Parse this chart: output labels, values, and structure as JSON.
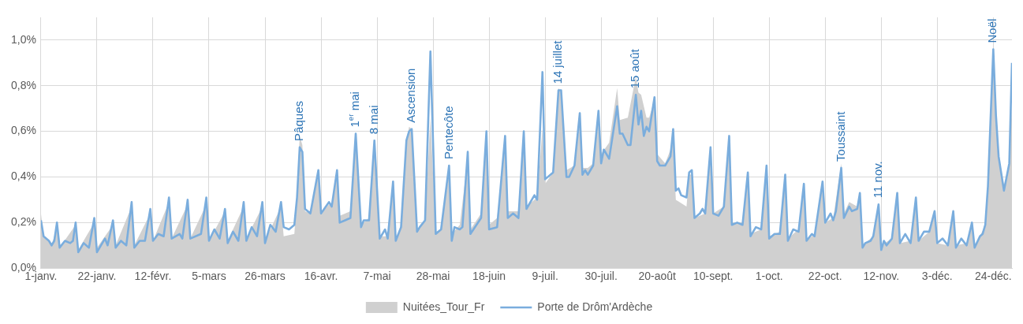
{
  "chart_data": {
    "type": "line",
    "xlim": [
      "--01-01",
      "--12-31"
    ],
    "xticks": [
      {
        "value": "--01-01",
        "label": "1-janv."
      },
      {
        "value": "--01-22",
        "label": "22-janv."
      },
      {
        "value": "--02-12",
        "label": "12-févr."
      },
      {
        "value": "--03-05",
        "label": "5-mars"
      },
      {
        "value": "--03-26",
        "label": "26-mars"
      },
      {
        "value": "--04-16",
        "label": "16-avr."
      },
      {
        "value": "--05-07",
        "label": "7-mai"
      },
      {
        "value": "--05-28",
        "label": "28-mai"
      },
      {
        "value": "--06-18",
        "label": "18-juin"
      },
      {
        "value": "--07-09",
        "label": "9-juil."
      },
      {
        "value": "--07-30",
        "label": "30-juil."
      },
      {
        "value": "--08-20",
        "label": "20-août"
      },
      {
        "value": "--09-10",
        "label": "10-sept."
      },
      {
        "value": "--10-01",
        "label": "1-oct."
      },
      {
        "value": "--10-22",
        "label": "22-oct."
      },
      {
        "value": "--11-12",
        "label": "12-nov."
      },
      {
        "value": "--12-03",
        "label": "3-déc."
      },
      {
        "value": "--12-24",
        "label": "24-déc."
      }
    ],
    "ylim": [
      0,
      1.1
    ],
    "yticks": [
      {
        "value": 0,
        "label": "0,0%"
      },
      {
        "value": 0.2,
        "label": "0,2%"
      },
      {
        "value": 0.4,
        "label": "0,4%"
      },
      {
        "value": 0.6,
        "label": "0,6%"
      },
      {
        "value": 0.8,
        "label": "0,8%"
      },
      {
        "value": 1.0,
        "label": "1,0%"
      }
    ],
    "grid": true,
    "legend": "bottom",
    "annotations": [
      {
        "text": "Pâques",
        "x": "--04-08",
        "y": 0.53
      },
      {
        "text": "1$^{er}$ mai",
        "x": "--04-29",
        "y": 0.59
      },
      {
        "text": "8 mai",
        "x": "--05-06",
        "y": 0.56
      },
      {
        "text": "Ascension",
        "x": "--05-20",
        "y": 0.61
      },
      {
        "text": "Pentecôte",
        "x": "--06-03",
        "y": 0.45
      },
      {
        "text": "14 juillet",
        "x": "--07-14",
        "y": 0.78
      },
      {
        "text": "15 août",
        "x": "--08-12",
        "y": 0.76
      },
      {
        "text": "Toussaint",
        "x": "--10-28",
        "y": 0.44
      },
      {
        "text": "11 nov.",
        "x": "--11-11",
        "y": 0.28
      },
      {
        "text": "Noël",
        "x": "--12-24",
        "y": 0.96
      }
    ],
    "series": [
      {
        "name": "Nuitées_Tour_Fr",
        "type": "area",
        "color": "#d0d0d0",
        "x": [
          "--01-01",
          "--01-02",
          "--01-04",
          "--01-05",
          "--01-07",
          "--01-08",
          "--01-14",
          "--01-15",
          "--01-21",
          "--01-22",
          "--01-28",
          "--01-29",
          "--02-04",
          "--02-05",
          "--02-11",
          "--02-12",
          "--02-18",
          "--02-19",
          "--02-25",
          "--02-26",
          "--03-04",
          "--03-05",
          "--03-11",
          "--03-12",
          "--03-18",
          "--03-19",
          "--03-25",
          "--03-26",
          "--04-01",
          "--04-02",
          "--04-06",
          "--04-07",
          "--04-08",
          "--04-09",
          "--04-10",
          "--04-12",
          "--04-15",
          "--04-16",
          "--04-19",
          "--04-20",
          "--04-22",
          "--04-23",
          "--04-27",
          "--04-29",
          "--05-01",
          "--05-04",
          "--05-06",
          "--05-08",
          "--05-11",
          "--05-13",
          "--05-14",
          "--05-16",
          "--05-18",
          "--05-19",
          "--05-20",
          "--05-22",
          "--05-25",
          "--05-27",
          "--05-29",
          "--05-31",
          "--06-03",
          "--06-04",
          "--06-07",
          "--06-10",
          "--06-11",
          "--06-15",
          "--06-17",
          "--06-18",
          "--06-21",
          "--06-24",
          "--06-25",
          "--06-29",
          "--07-01",
          "--07-02",
          "--07-06",
          "--07-08",
          "--07-09",
          "--07-12",
          "--07-14",
          "--07-15",
          "--07-17",
          "--07-20",
          "--07-22",
          "--07-23",
          "--07-25",
          "--07-27",
          "--07-29",
          "--07-30",
          "--08-02",
          "--08-05",
          "--08-06",
          "--08-09",
          "--08-12",
          "--08-13",
          "--08-14",
          "--08-16",
          "--08-17",
          "--08-19",
          "--08-20",
          "--08-23",
          "--08-26",
          "--08-27",
          "--08-31",
          "--09-01",
          "--09-02",
          "--09-03",
          "--09-07",
          "--09-09",
          "--09-10",
          "--09-14",
          "--09-16",
          "--09-17",
          "--09-21",
          "--09-23",
          "--09-24",
          "--09-28",
          "--09-30",
          "--10-01",
          "--10-05",
          "--10-07",
          "--10-08",
          "--10-12",
          "--10-14",
          "--10-15",
          "--10-18",
          "--10-21",
          "--10-22",
          "--10-25",
          "--10-28",
          "--10-29",
          "--10-31",
          "--11-03",
          "--11-04",
          "--11-05",
          "--11-09",
          "--11-11",
          "--11-12",
          "--11-16",
          "--11-18",
          "--11-19",
          "--11-23",
          "--11-25",
          "--11-26",
          "--11-30",
          "--12-02",
          "--12-03",
          "--12-07",
          "--12-09",
          "--12-10",
          "--12-14",
          "--12-16",
          "--12-17",
          "--12-21",
          "--12-22",
          "--12-24",
          "--12-25",
          "--12-26",
          "--12-28",
          "--12-30",
          "--12-31"
        ],
        "values": [
          0.24,
          0.14,
          0.12,
          0.1,
          0.18,
          0.09,
          0.19,
          0.08,
          0.2,
          0.09,
          0.19,
          0.1,
          0.27,
          0.1,
          0.24,
          0.12,
          0.29,
          0.13,
          0.28,
          0.13,
          0.28,
          0.12,
          0.25,
          0.12,
          0.27,
          0.13,
          0.27,
          0.12,
          0.27,
          0.14,
          0.15,
          0.33,
          0.58,
          0.54,
          0.25,
          0.24,
          0.41,
          0.24,
          0.28,
          0.27,
          0.41,
          0.23,
          0.25,
          0.56,
          0.19,
          0.22,
          0.53,
          0.14,
          0.14,
          0.36,
          0.13,
          0.19,
          0.55,
          0.62,
          0.61,
          0.17,
          0.21,
          0.66,
          0.16,
          0.17,
          0.42,
          0.15,
          0.19,
          0.48,
          0.17,
          0.24,
          0.57,
          0.19,
          0.22,
          0.55,
          0.25,
          0.25,
          0.56,
          0.27,
          0.31,
          0.61,
          0.37,
          0.42,
          0.79,
          0.77,
          0.43,
          0.45,
          0.64,
          0.44,
          0.44,
          0.46,
          0.66,
          0.5,
          0.55,
          0.79,
          0.65,
          0.66,
          0.84,
          0.77,
          0.76,
          0.66,
          0.66,
          0.74,
          0.5,
          0.46,
          0.55,
          0.3,
          0.27,
          0.41,
          0.41,
          0.22,
          0.24,
          0.5,
          0.24,
          0.27,
          0.55,
          0.2,
          0.2,
          0.4,
          0.15,
          0.17,
          0.43,
          0.14,
          0.16,
          0.39,
          0.13,
          0.17,
          0.35,
          0.12,
          0.15,
          0.36,
          0.2,
          0.22,
          0.46,
          0.24,
          0.29,
          0.27,
          0.32,
          0.1,
          0.14,
          0.27,
          0.1,
          0.13,
          0.31,
          0.11,
          0.12,
          0.29,
          0.12,
          0.16,
          0.24,
          0.11,
          0.1,
          0.24,
          0.1,
          0.11,
          0.19,
          0.09,
          0.19,
          0.36,
          0.92,
          0.68,
          0.5,
          0.36,
          0.45,
          0.73
        ]
      },
      {
        "name": "Porte de Drôm'Ardèche",
        "type": "line",
        "color": "#7aaddd",
        "x": [
          "--01-01",
          "--01-02",
          "--01-04",
          "--01-05",
          "--01-06",
          "--01-07",
          "--01-08",
          "--01-10",
          "--01-12",
          "--01-13",
          "--01-14",
          "--01-15",
          "--01-17",
          "--01-19",
          "--01-21",
          "--01-22",
          "--01-25",
          "--01-26",
          "--01-28",
          "--01-29",
          "--01-31",
          "--02-02",
          "--02-04",
          "--02-05",
          "--02-07",
          "--02-09",
          "--02-11",
          "--02-12",
          "--02-14",
          "--02-16",
          "--02-18",
          "--02-19",
          "--02-22",
          "--02-23",
          "--02-25",
          "--02-26",
          "--03-02",
          "--03-04",
          "--03-05",
          "--03-07",
          "--03-09",
          "--03-11",
          "--03-12",
          "--03-14",
          "--03-16",
          "--03-18",
          "--03-19",
          "--03-21",
          "--03-23",
          "--03-25",
          "--03-26",
          "--03-28",
          "--03-30",
          "--04-01",
          "--04-02",
          "--04-04",
          "--04-06",
          "--04-07",
          "--04-08",
          "--04-09",
          "--04-10",
          "--04-12",
          "--04-15",
          "--04-16",
          "--04-19",
          "--04-20",
          "--04-22",
          "--04-23",
          "--04-25",
          "--04-27",
          "--04-29",
          "--05-01",
          "--05-02",
          "--05-04",
          "--05-06",
          "--05-08",
          "--05-10",
          "--05-11",
          "--05-13",
          "--05-14",
          "--05-16",
          "--05-18",
          "--05-19",
          "--05-20",
          "--05-22",
          "--05-23",
          "--05-25",
          "--05-27",
          "--05-29",
          "--05-31",
          "--06-03",
          "--06-04",
          "--06-05",
          "--06-07",
          "--06-08",
          "--06-10",
          "--06-11",
          "--06-15",
          "--06-17",
          "--06-18",
          "--06-21",
          "--06-24",
          "--06-25",
          "--06-27",
          "--06-29",
          "--07-01",
          "--07-02",
          "--07-05",
          "--07-06",
          "--07-08",
          "--07-09",
          "--07-12",
          "--07-14",
          "--07-15",
          "--07-17",
          "--07-18",
          "--07-20",
          "--07-22",
          "--07-23",
          "--07-24",
          "--07-25",
          "--07-27",
          "--07-29",
          "--07-30",
          "--07-31",
          "--08-02",
          "--08-05",
          "--08-06",
          "--08-07",
          "--08-09",
          "--08-10",
          "--08-12",
          "--08-13",
          "--08-14",
          "--08-15",
          "--08-16",
          "--08-17",
          "--08-19",
          "--08-20",
          "--08-21",
          "--08-23",
          "--08-25",
          "--08-26",
          "--08-27",
          "--08-28",
          "--08-29",
          "--08-31",
          "--09-01",
          "--09-02",
          "--09-03",
          "--09-05",
          "--09-06",
          "--09-07",
          "--09-09",
          "--09-10",
          "--09-12",
          "--09-14",
          "--09-16",
          "--09-17",
          "--09-19",
          "--09-21",
          "--09-23",
          "--09-24",
          "--09-26",
          "--09-28",
          "--09-30",
          "--10-01",
          "--10-03",
          "--10-05",
          "--10-07",
          "--10-08",
          "--10-10",
          "--10-12",
          "--10-14",
          "--10-15",
          "--10-17",
          "--10-18",
          "--10-21",
          "--10-22",
          "--10-24",
          "--10-25",
          "--10-26",
          "--10-28",
          "--10-29",
          "--10-31",
          "--11-01",
          "--11-03",
          "--11-04",
          "--11-05",
          "--11-06",
          "--11-08",
          "--11-09",
          "--11-11",
          "--11-12",
          "--11-13",
          "--11-14",
          "--11-16",
          "--11-18",
          "--11-19",
          "--11-21",
          "--11-23",
          "--11-25",
          "--11-26",
          "--11-28",
          "--11-30",
          "--12-02",
          "--12-03",
          "--12-05",
          "--12-07",
          "--12-09",
          "--12-10",
          "--12-12",
          "--12-14",
          "--12-16",
          "--12-17",
          "--12-19",
          "--12-20",
          "--12-21",
          "--12-22",
          "--12-24",
          "--12-25",
          "--12-26",
          "--12-28",
          "--12-30",
          "--12-31"
        ],
        "values": [
          0.21,
          0.14,
          0.12,
          0.1,
          0.12,
          0.2,
          0.09,
          0.12,
          0.11,
          0.12,
          0.2,
          0.07,
          0.11,
          0.09,
          0.22,
          0.07,
          0.13,
          0.1,
          0.21,
          0.09,
          0.12,
          0.1,
          0.29,
          0.09,
          0.12,
          0.12,
          0.26,
          0.12,
          0.15,
          0.14,
          0.31,
          0.13,
          0.15,
          0.13,
          0.3,
          0.13,
          0.15,
          0.31,
          0.12,
          0.17,
          0.13,
          0.26,
          0.11,
          0.16,
          0.12,
          0.29,
          0.12,
          0.18,
          0.14,
          0.29,
          0.11,
          0.19,
          0.16,
          0.29,
          0.18,
          0.17,
          0.19,
          0.31,
          0.53,
          0.51,
          0.26,
          0.24,
          0.43,
          0.24,
          0.29,
          0.27,
          0.43,
          0.2,
          0.21,
          0.22,
          0.59,
          0.18,
          0.21,
          0.21,
          0.56,
          0.13,
          0.17,
          0.13,
          0.38,
          0.12,
          0.18,
          0.56,
          0.6,
          0.61,
          0.16,
          0.18,
          0.21,
          0.95,
          0.15,
          0.17,
          0.45,
          0.12,
          0.18,
          0.17,
          0.18,
          0.51,
          0.15,
          0.22,
          0.6,
          0.17,
          0.18,
          0.58,
          0.22,
          0.24,
          0.22,
          0.6,
          0.26,
          0.32,
          0.3,
          0.86,
          0.39,
          0.42,
          0.78,
          0.78,
          0.4,
          0.4,
          0.45,
          0.68,
          0.41,
          0.43,
          0.41,
          0.45,
          0.69,
          0.46,
          0.52,
          0.48,
          0.71,
          0.59,
          0.59,
          0.54,
          0.54,
          0.76,
          0.63,
          0.69,
          0.58,
          0.62,
          0.6,
          0.75,
          0.47,
          0.45,
          0.45,
          0.49,
          0.61,
          0.34,
          0.35,
          0.32,
          0.31,
          0.42,
          0.43,
          0.22,
          0.24,
          0.26,
          0.24,
          0.53,
          0.24,
          0.23,
          0.27,
          0.58,
          0.19,
          0.2,
          0.19,
          0.42,
          0.14,
          0.18,
          0.17,
          0.45,
          0.13,
          0.15,
          0.15,
          0.41,
          0.12,
          0.17,
          0.16,
          0.37,
          0.12,
          0.15,
          0.14,
          0.38,
          0.2,
          0.24,
          0.21,
          0.25,
          0.44,
          0.22,
          0.27,
          0.25,
          0.26,
          0.33,
          0.09,
          0.11,
          0.12,
          0.14,
          0.28,
          0.08,
          0.12,
          0.1,
          0.13,
          0.33,
          0.11,
          0.15,
          0.11,
          0.31,
          0.12,
          0.16,
          0.16,
          0.25,
          0.11,
          0.13,
          0.1,
          0.25,
          0.09,
          0.13,
          0.1,
          0.2,
          0.09,
          0.14,
          0.15,
          0.19,
          0.36,
          0.96,
          0.67,
          0.49,
          0.34,
          0.46,
          0.9
        ]
      }
    ]
  }
}
